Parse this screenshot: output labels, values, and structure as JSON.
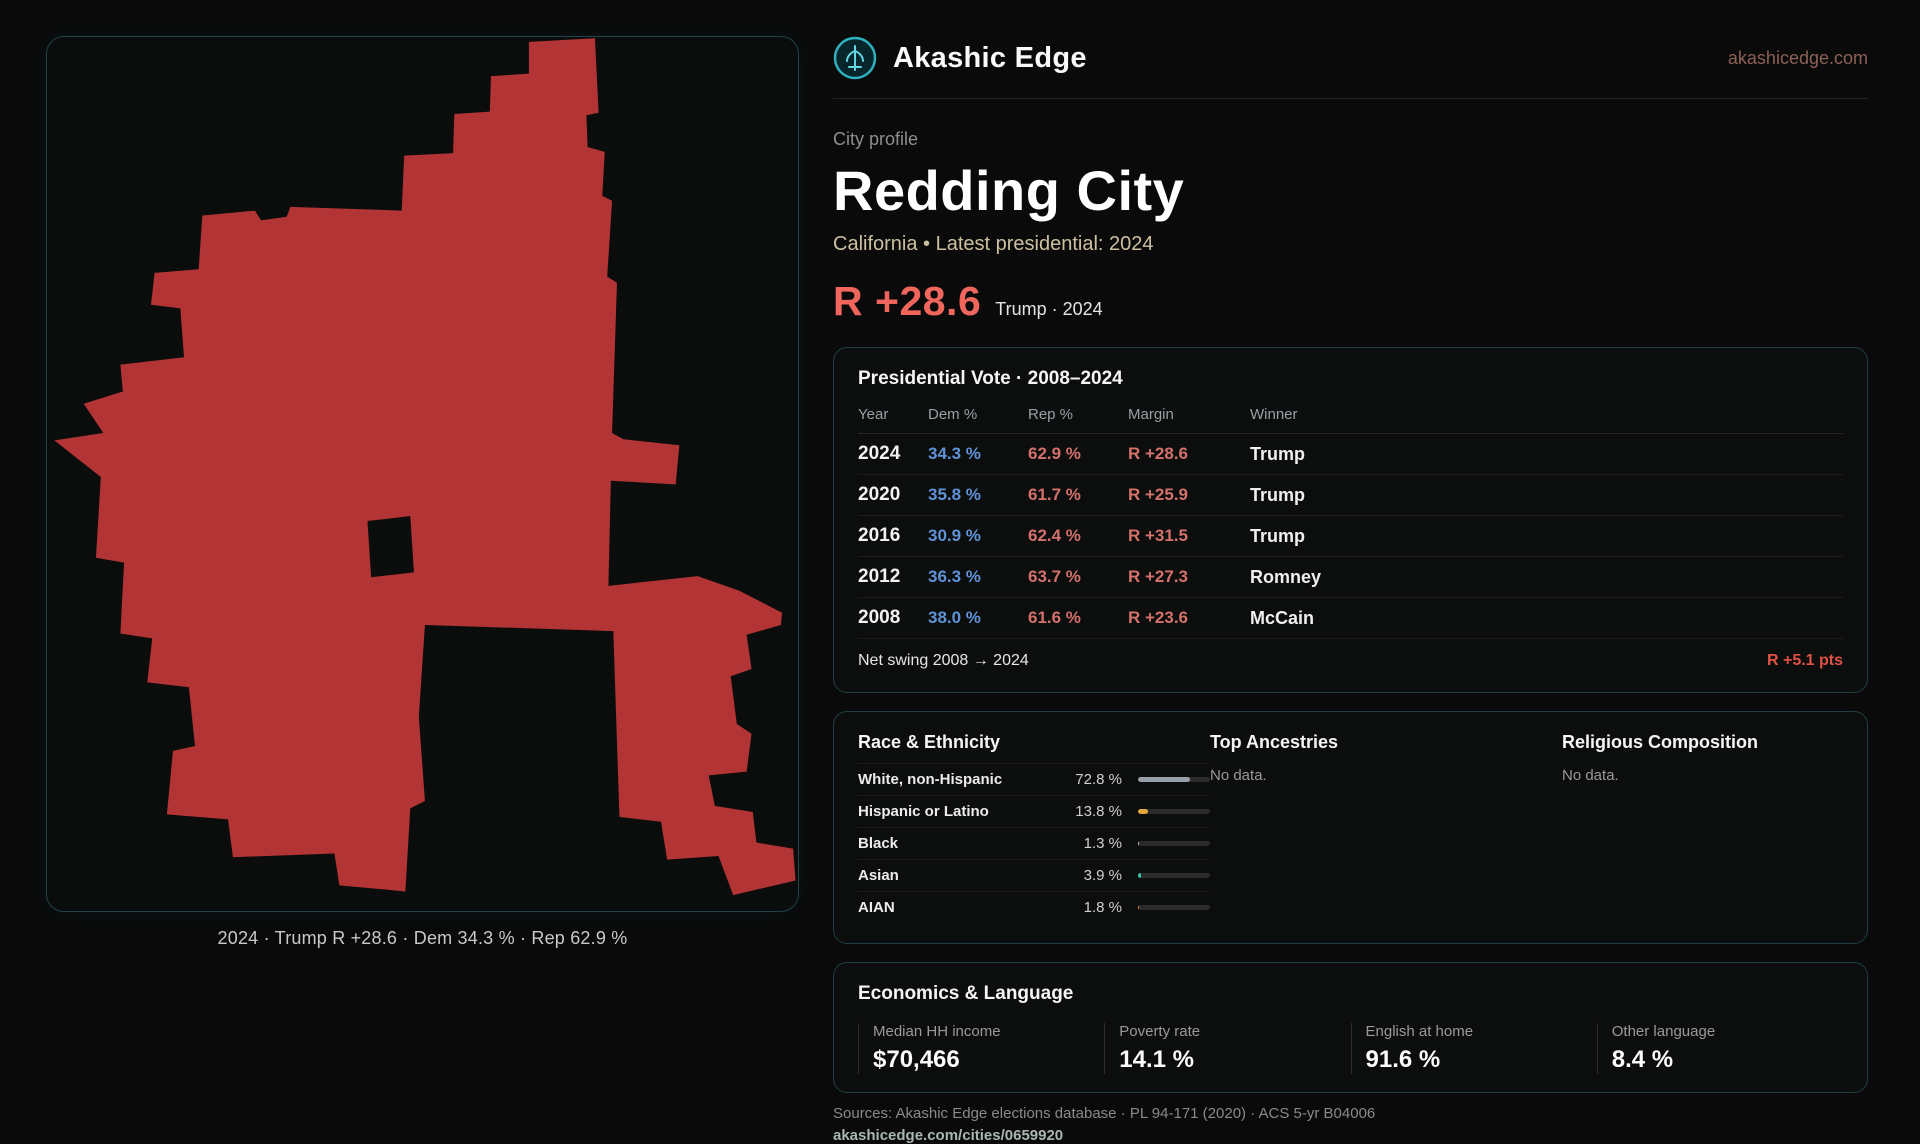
{
  "header": {
    "brand": "Akashic Edge",
    "domain": "akashicedge.com"
  },
  "profile": {
    "eyebrow": "City profile",
    "title": "Redding City",
    "subtitle": "California • Latest presidential: 2024",
    "margin_value": "R +28.6",
    "margin_context": "Trump · 2024"
  },
  "map": {
    "caption": "2024 · Trump R +28.6 · Dem 34.3 % · Rep 62.9 %"
  },
  "colors": {
    "map_fill": "#b23434",
    "accent_red": "#f0665c",
    "dem_blue": "#5f93d8",
    "rep_red": "#d4716b"
  },
  "presidential_vote": {
    "title": "Presidential Vote · 2008–2024",
    "columns": [
      "Year",
      "Dem %",
      "Rep %",
      "Margin",
      "Winner"
    ],
    "rows": [
      {
        "year": "2024",
        "dem": "34.3 %",
        "rep": "62.9 %",
        "margin": "R +28.6",
        "winner": "Trump"
      },
      {
        "year": "2020",
        "dem": "35.8 %",
        "rep": "61.7 %",
        "margin": "R +25.9",
        "winner": "Trump"
      },
      {
        "year": "2016",
        "dem": "30.9 %",
        "rep": "62.4 %",
        "margin": "R +31.5",
        "winner": "Trump"
      },
      {
        "year": "2012",
        "dem": "36.3 %",
        "rep": "63.7 %",
        "margin": "R +27.3",
        "winner": "Romney"
      },
      {
        "year": "2008",
        "dem": "38.0 %",
        "rep": "61.6 %",
        "margin": "R +23.6",
        "winner": "McCain"
      }
    ],
    "net_swing_label": "Net swing 2008 → 2024",
    "net_swing_value": "R +5.1 pts"
  },
  "race_ethnicity": {
    "title": "Race & Ethnicity",
    "rows": [
      {
        "label": "White, non-Hispanic",
        "value": "72.8 %",
        "pct": 72.8,
        "color": "#98a0a8"
      },
      {
        "label": "Hispanic or Latino",
        "value": "13.8 %",
        "pct": 13.8,
        "color": "#e3a93c"
      },
      {
        "label": "Black",
        "value": "1.3 %",
        "pct": 1.3,
        "color": "#c8cdd2"
      },
      {
        "label": "Asian",
        "value": "3.9 %",
        "pct": 3.9,
        "color": "#35c9a8"
      },
      {
        "label": "AIAN",
        "value": "1.8 %",
        "pct": 1.8,
        "color": "#dd7e35"
      }
    ]
  },
  "top_ancestries": {
    "title": "Top Ancestries",
    "empty": "No data."
  },
  "religious_composition": {
    "title": "Religious Composition",
    "empty": "No data."
  },
  "economics": {
    "title": "Economics & Language",
    "stats": [
      {
        "label": "Median HH income",
        "value": "$70,466"
      },
      {
        "label": "Poverty rate",
        "value": "14.1 %"
      },
      {
        "label": "English at home",
        "value": "91.6 %"
      },
      {
        "label": "Other language",
        "value": "8.4 %"
      }
    ]
  },
  "footer": {
    "sources": "Sources: Akashic Edge elections database · PL 94-171 (2020) · ACS 5-yr B04006",
    "permalink": "akashicedge.com/cities/0659920"
  }
}
